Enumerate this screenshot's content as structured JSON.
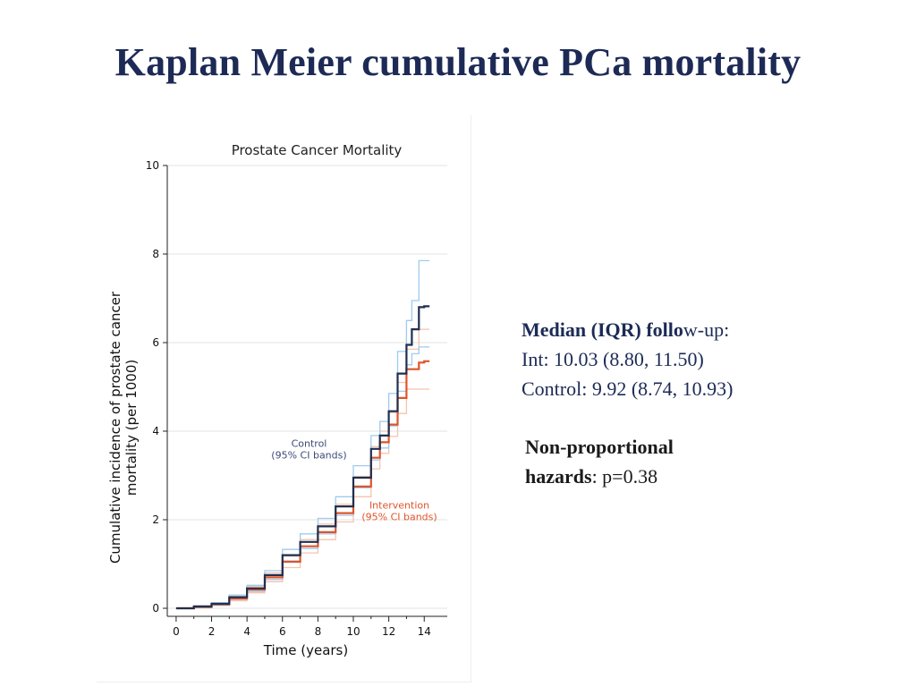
{
  "slide": {
    "title": "Kaplan Meier cumulative PCa mortality"
  },
  "followup": {
    "heading_bold": "Median (IQR) follo",
    "heading_rest": "w-up:",
    "int_line": "Int: 10.03 (8.80, 11.50)",
    "control_line": "Control: 9.92 (8.74, 10.93)"
  },
  "hazards": {
    "label_line1": "Non-proportional",
    "label_line2": "hazards",
    "value": ": p=0.38"
  },
  "chart_data": {
    "type": "line",
    "title": "Prostate Cancer Mortality",
    "xlabel": "Time (years)",
    "ylabel_line1": "Cumulative incidence of prostate cancer",
    "ylabel_line2": "mortality (per 1000)",
    "xlim": [
      -0.5,
      15.3
    ],
    "ylim": [
      0,
      10
    ],
    "x_ticks": [
      0,
      2,
      4,
      6,
      8,
      10,
      12,
      14
    ],
    "x_minor_ticks": [
      1,
      3,
      5,
      7,
      9,
      11,
      13
    ],
    "y_ticks": [
      0,
      2,
      4,
      6,
      8,
      10
    ],
    "grid": true,
    "legend": "annotations",
    "annotations": [
      {
        "line1": "Control",
        "line2": "(95% CI bands)",
        "x": 7.5,
        "y": 3.65,
        "color": "#3d4a7a"
      },
      {
        "line1": "Intervention",
        "line2": "(95% CI bands)",
        "x": 12.6,
        "y": 2.25,
        "color": "#e0542a"
      }
    ],
    "series": [
      {
        "name": "Control",
        "color": "#1f2f4f",
        "ci_color": "#9ecbee",
        "x": [
          0,
          1,
          2,
          3,
          4,
          5,
          6,
          7,
          8,
          9,
          10,
          11,
          11.5,
          12,
          12.5,
          13,
          13.3,
          13.7,
          14,
          14.3
        ],
        "y": [
          0,
          0.04,
          0.1,
          0.25,
          0.45,
          0.75,
          1.2,
          1.5,
          1.85,
          2.3,
          2.95,
          3.6,
          3.9,
          4.45,
          5.3,
          5.95,
          6.3,
          6.8,
          6.82,
          6.82
        ],
        "ci_lower": [
          0,
          0.02,
          0.07,
          0.2,
          0.38,
          0.65,
          1.07,
          1.35,
          1.68,
          2.1,
          2.72,
          3.35,
          3.62,
          4.12,
          4.9,
          5.5,
          5.75,
          5.9,
          5.9,
          5.9
        ],
        "ci_upper": [
          0,
          0.06,
          0.13,
          0.3,
          0.52,
          0.85,
          1.33,
          1.68,
          2.03,
          2.52,
          3.22,
          3.9,
          4.22,
          4.85,
          5.8,
          6.5,
          6.95,
          7.85,
          7.85,
          7.85
        ]
      },
      {
        "name": "Intervention",
        "color": "#e0542a",
        "ci_color": "#f5c4ae",
        "x": [
          0,
          1,
          2,
          3,
          4,
          5,
          6,
          7,
          8,
          9,
          10,
          11,
          11.5,
          12,
          12.5,
          13,
          13.3,
          13.7,
          14,
          14.3
        ],
        "y": [
          0,
          0.03,
          0.09,
          0.22,
          0.42,
          0.7,
          1.05,
          1.4,
          1.72,
          2.15,
          2.75,
          3.4,
          3.75,
          4.15,
          4.75,
          5.4,
          5.4,
          5.55,
          5.58,
          5.58
        ],
        "ci_lower": [
          0,
          0.01,
          0.06,
          0.17,
          0.35,
          0.6,
          0.92,
          1.25,
          1.55,
          1.95,
          2.52,
          3.15,
          3.5,
          3.88,
          4.4,
          4.95,
          4.95,
          4.95,
          4.95,
          4.95
        ],
        "ci_upper": [
          0,
          0.05,
          0.12,
          0.27,
          0.49,
          0.8,
          1.18,
          1.55,
          1.9,
          2.35,
          2.98,
          3.65,
          4.0,
          4.42,
          5.1,
          5.85,
          5.85,
          6.3,
          6.3,
          6.3
        ]
      }
    ]
  }
}
